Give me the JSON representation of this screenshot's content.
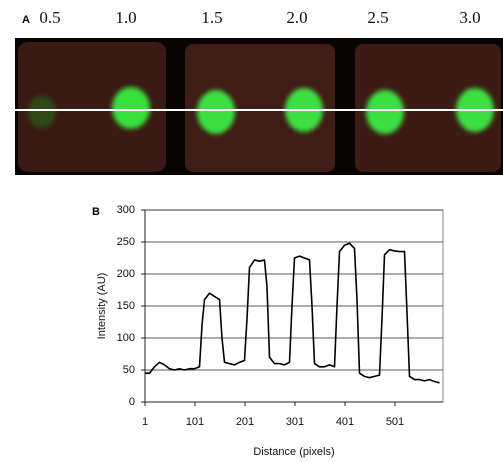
{
  "panel_a": {
    "label": "A",
    "concentrations": [
      "0.5",
      "1.0",
      "1.5",
      "2.0",
      "2.5",
      "3.0"
    ]
  },
  "chart_data": {
    "type": "line",
    "panel_label": "B",
    "x_label": "Distance (pixels)",
    "y_label": "Intensity (AU)",
    "x": [
      1,
      10,
      20,
      30,
      40,
      50,
      60,
      70,
      80,
      90,
      100,
      110,
      115,
      120,
      130,
      140,
      150,
      155,
      160,
      170,
      180,
      190,
      200,
      205,
      210,
      220,
      230,
      240,
      245,
      250,
      260,
      270,
      280,
      290,
      295,
      300,
      310,
      320,
      330,
      335,
      340,
      350,
      360,
      370,
      380,
      385,
      390,
      400,
      410,
      420,
      425,
      430,
      440,
      450,
      460,
      470,
      475,
      480,
      490,
      500,
      510,
      520,
      525,
      530,
      540,
      550,
      560,
      570,
      580,
      590
    ],
    "values": [
      45,
      45,
      55,
      62,
      58,
      52,
      50,
      52,
      50,
      52,
      52,
      55,
      120,
      160,
      170,
      165,
      160,
      100,
      62,
      60,
      58,
      62,
      65,
      130,
      210,
      222,
      220,
      222,
      180,
      70,
      60,
      60,
      58,
      62,
      150,
      225,
      228,
      225,
      222,
      150,
      60,
      55,
      55,
      58,
      55,
      150,
      235,
      245,
      248,
      240,
      160,
      45,
      40,
      38,
      40,
      42,
      130,
      230,
      238,
      236,
      235,
      235,
      140,
      40,
      35,
      35,
      33,
      35,
      32,
      30
    ],
    "color": "#000000",
    "xlim": [
      1,
      597
    ],
    "ylim": [
      0,
      300
    ],
    "xticks": [
      1,
      101,
      201,
      301,
      401,
      501
    ],
    "yticks": [
      0,
      50,
      100,
      150,
      200,
      250,
      300
    ],
    "grid": true
  }
}
